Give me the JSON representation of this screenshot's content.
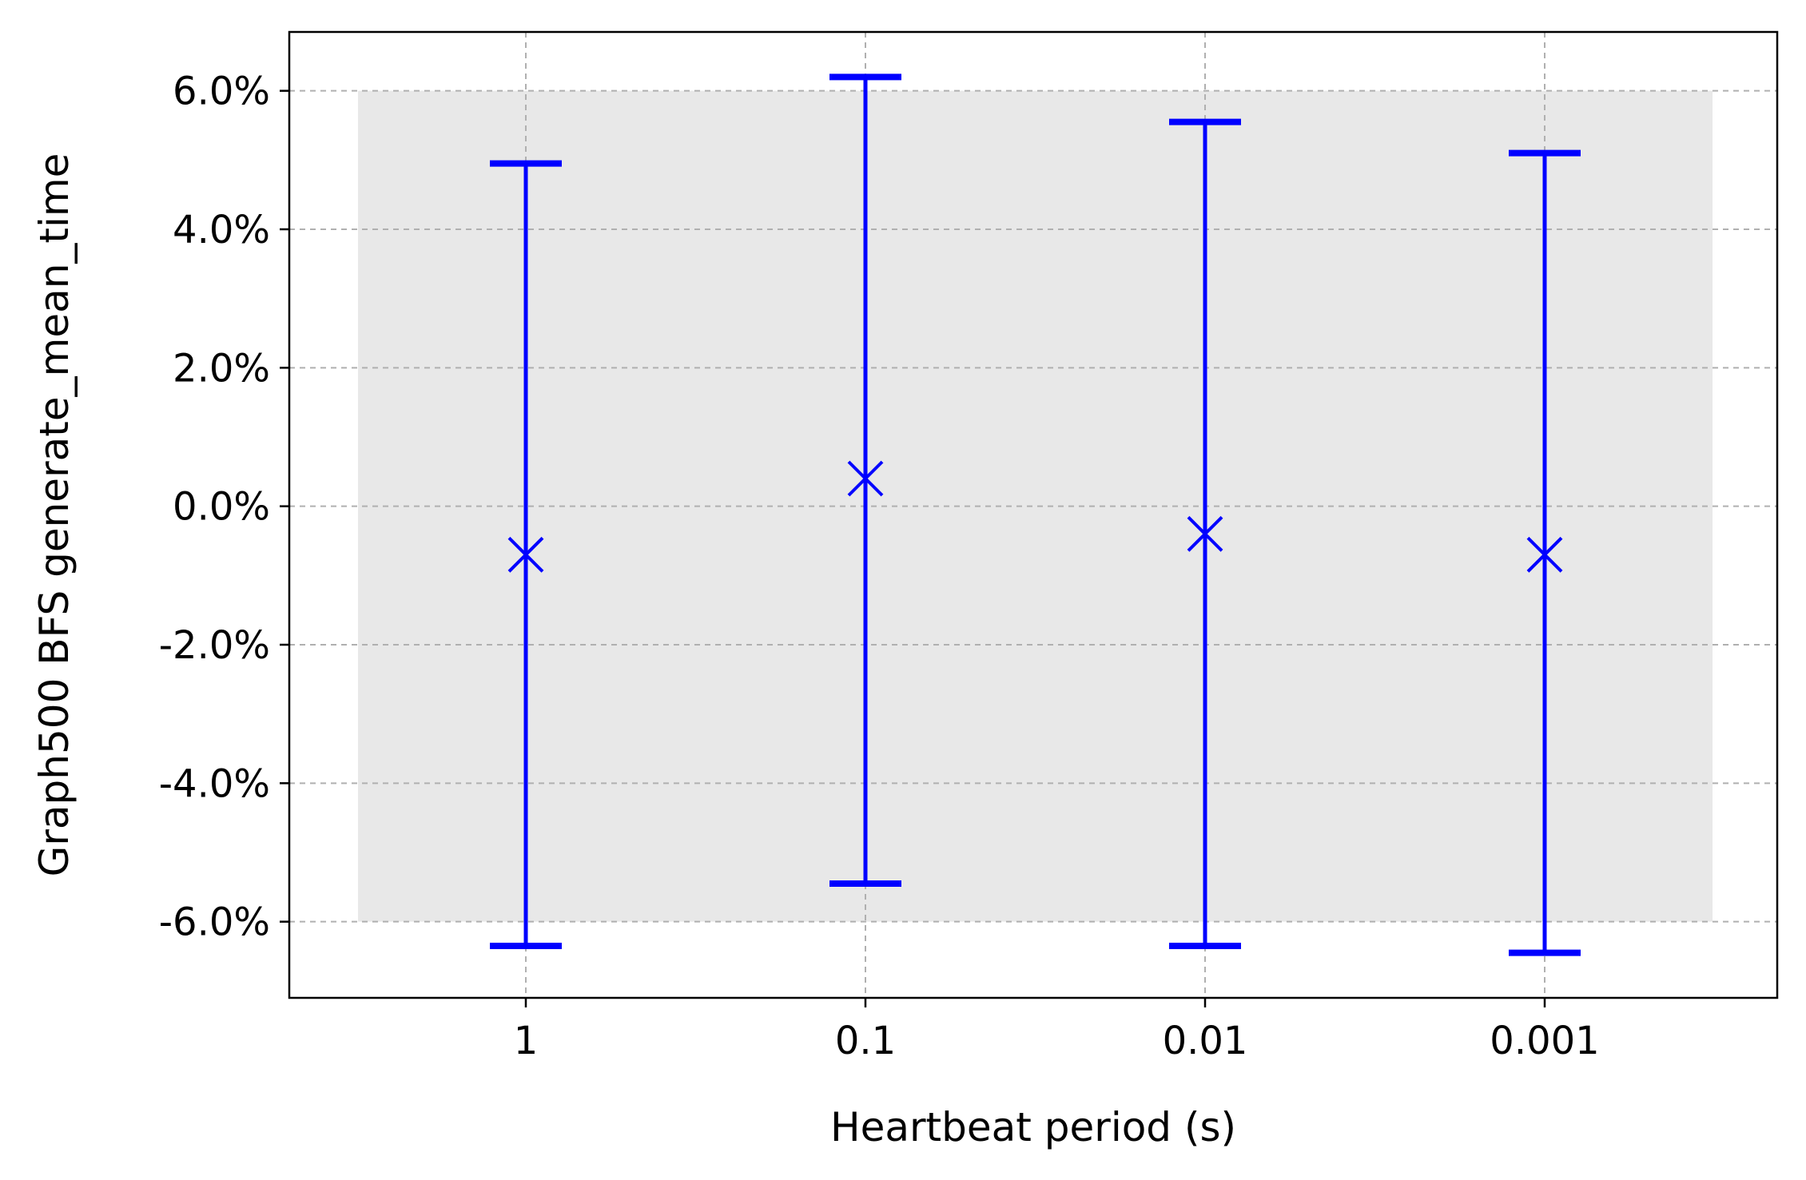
{
  "chart_data": {
    "type": "errorbar",
    "categories": [
      "1",
      "0.1",
      "0.01",
      "0.001"
    ],
    "series": [
      {
        "values": [
          -0.7,
          0.4,
          -0.4,
          -0.7
        ],
        "lower": [
          -6.35,
          -5.45,
          -6.35,
          -6.45
        ],
        "upper": [
          4.95,
          6.2,
          5.55,
          5.1
        ],
        "marker": "x",
        "color": "#0000ff"
      }
    ],
    "band": {
      "lower": -6.0,
      "upper": 6.0,
      "color": "#e8e8e8"
    },
    "xlabel": "Heartbeat period (s)",
    "ylabel": "Graph500 BFS generate_mean_time",
    "yticks": [
      -6.0,
      -4.0,
      -2.0,
      0.0,
      2.0,
      4.0,
      6.0
    ],
    "ytick_labels": [
      "-6.0%",
      "-4.0%",
      "-2.0%",
      "0.0%",
      "2.0%",
      "4.0%",
      "6.0%"
    ],
    "ylim": [
      -7.1,
      6.85
    ],
    "grid": true,
    "grid_style": "dashed"
  }
}
